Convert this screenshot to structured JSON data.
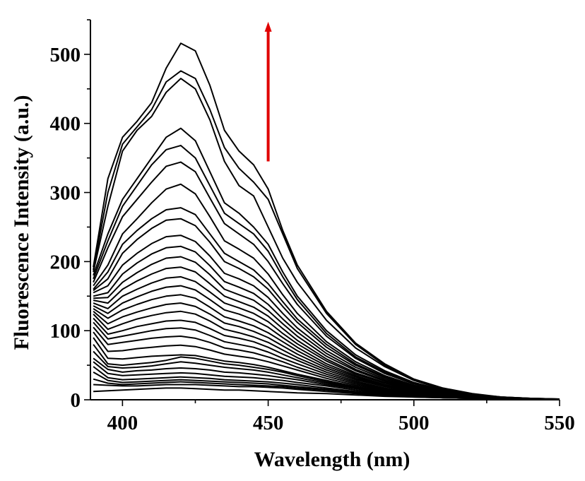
{
  "chart_data": {
    "type": "line",
    "xlabel": "Wavelength (nm)",
    "ylabel": "Fluorescence Intensity (a.u.)",
    "xlim": [
      389,
      550
    ],
    "ylim": [
      0,
      550
    ],
    "xticks": [
      400,
      450,
      500,
      550
    ],
    "yticks": [
      0,
      100,
      200,
      300,
      400,
      500
    ],
    "grid": false,
    "legend": "none",
    "annotation": {
      "type": "arrow",
      "color": "#e00000",
      "x": 450,
      "y_from": 345,
      "y_to": 545,
      "meaning": "increasing intensity"
    },
    "x": [
      390,
      395,
      400,
      405,
      410,
      415,
      420,
      425,
      430,
      435,
      440,
      445,
      450,
      455,
      460,
      470,
      480,
      490,
      500,
      510,
      520,
      530,
      540,
      550
    ],
    "series": [
      {
        "values": [
          192,
          320,
          380,
          403,
          430,
          480,
          516,
          505,
          455,
          390,
          360,
          340,
          305,
          245,
          195,
          128,
          82,
          52,
          30,
          17,
          9,
          4,
          2,
          1
        ]
      },
      {
        "values": [
          188,
          300,
          370,
          395,
          420,
          460,
          476,
          465,
          420,
          365,
          335,
          315,
          290,
          240,
          190,
          125,
          80,
          50,
          29,
          16,
          8,
          4,
          2,
          1
        ]
      },
      {
        "values": [
          185,
          280,
          360,
          390,
          410,
          445,
          465,
          450,
          405,
          345,
          310,
          295,
          250,
          205,
          170,
          115,
          75,
          48,
          28,
          15,
          8,
          4,
          2,
          1
        ]
      },
      {
        "values": [
          180,
          240,
          290,
          320,
          350,
          380,
          393,
          375,
          330,
          285,
          270,
          250,
          225,
          185,
          150,
          100,
          65,
          42,
          25,
          14,
          7,
          3,
          1,
          1
        ]
      },
      {
        "values": [
          175,
          230,
          280,
          310,
          340,
          362,
          368,
          350,
          310,
          270,
          255,
          240,
          215,
          178,
          145,
          96,
          62,
          40,
          24,
          13,
          7,
          3,
          1,
          1
        ]
      },
      {
        "values": [
          170,
          220,
          265,
          290,
          315,
          338,
          344,
          330,
          292,
          255,
          240,
          225,
          200,
          168,
          138,
          92,
          60,
          38,
          23,
          13,
          6,
          3,
          1,
          1
        ]
      },
      {
        "values": [
          165,
          195,
          240,
          262,
          285,
          305,
          312,
          298,
          265,
          230,
          218,
          205,
          182,
          152,
          125,
          84,
          55,
          35,
          21,
          12,
          6,
          3,
          1,
          1
        ]
      },
      {
        "values": [
          160,
          185,
          225,
          245,
          262,
          275,
          278,
          268,
          240,
          212,
          200,
          188,
          168,
          142,
          117,
          80,
          52,
          33,
          20,
          11,
          6,
          3,
          1,
          1
        ]
      },
      {
        "values": [
          158,
          175,
          212,
          232,
          248,
          260,
          262,
          252,
          228,
          200,
          190,
          178,
          160,
          135,
          112,
          76,
          50,
          32,
          19,
          11,
          5,
          2,
          1,
          1
        ]
      },
      {
        "values": [
          155,
          165,
          195,
          212,
          226,
          236,
          238,
          229,
          208,
          183,
          175,
          165,
          148,
          125,
          104,
          71,
          47,
          30,
          18,
          10,
          5,
          2,
          1,
          0
        ]
      },
      {
        "values": [
          150,
          155,
          182,
          198,
          211,
          220,
          222,
          214,
          194,
          171,
          163,
          154,
          138,
          117,
          98,
          67,
          44,
          28,
          17,
          10,
          5,
          2,
          1,
          0
        ]
      },
      {
        "values": [
          147,
          148,
          170,
          184,
          196,
          205,
          207,
          199,
          181,
          160,
          152,
          144,
          129,
          110,
          92,
          63,
          42,
          27,
          16,
          9,
          5,
          2,
          1,
          0
        ]
      },
      {
        "values": [
          144,
          140,
          160,
          172,
          182,
          190,
          192,
          185,
          168,
          150,
          142,
          134,
          121,
          103,
          86,
          59,
          39,
          25,
          15,
          9,
          4,
          2,
          1,
          0
        ]
      },
      {
        "values": [
          140,
          132,
          150,
          160,
          169,
          176,
          178,
          171,
          156,
          140,
          133,
          125,
          113,
          96,
          81,
          56,
          37,
          24,
          14,
          8,
          4,
          2,
          1,
          0
        ]
      },
      {
        "values": [
          136,
          125,
          140,
          149,
          157,
          163,
          165,
          159,
          145,
          130,
          124,
          116,
          105,
          90,
          76,
          52,
          35,
          22,
          13,
          8,
          4,
          2,
          1,
          0
        ]
      },
      {
        "values": [
          132,
          118,
          130,
          138,
          145,
          150,
          152,
          147,
          134,
          120,
          114,
          107,
          97,
          84,
          71,
          49,
          33,
          21,
          12,
          7,
          4,
          2,
          1,
          0
        ]
      },
      {
        "values": [
          128,
          110,
          120,
          127,
          133,
          138,
          140,
          135,
          124,
          111,
          106,
          99,
          90,
          78,
          66,
          46,
          31,
          20,
          12,
          7,
          3,
          2,
          1,
          0
        ]
      },
      {
        "values": [
          124,
          102,
          110,
          117,
          122,
          126,
          128,
          124,
          114,
          102,
          97,
          91,
          83,
          72,
          61,
          43,
          29,
          19,
          11,
          6,
          3,
          1,
          1,
          0
        ]
      },
      {
        "values": [
          118,
          95,
          100,
          106,
          110,
          114,
          115,
          112,
          103,
          93,
          89,
          84,
          76,
          66,
          57,
          40,
          27,
          17,
          10,
          6,
          3,
          1,
          1,
          0
        ]
      },
      {
        "values": [
          112,
          88,
          92,
          96,
          100,
          103,
          104,
          101,
          93,
          84,
          80,
          76,
          69,
          60,
          52,
          37,
          25,
          16,
          10,
          5,
          3,
          1,
          1,
          0
        ]
      },
      {
        "values": [
          105,
          80,
          83,
          86,
          89,
          91,
          92,
          89,
          83,
          75,
          72,
          68,
          62,
          55,
          47,
          34,
          23,
          15,
          9,
          5,
          2,
          1,
          0,
          0
        ]
      },
      {
        "values": [
          98,
          70,
          71,
          74,
          76,
          78,
          79,
          77,
          72,
          66,
          63,
          60,
          55,
          49,
          43,
          31,
          21,
          14,
          8,
          5,
          2,
          1,
          0,
          0
        ]
      },
      {
        "values": [
          90,
          60,
          59,
          61,
          63,
          64,
          65,
          64,
          60,
          56,
          54,
          51,
          47,
          42,
          37,
          28,
          19,
          13,
          8,
          4,
          2,
          1,
          0,
          0
        ]
      },
      {
        "values": [
          80,
          52,
          50,
          52,
          54,
          57,
          62,
          60,
          56,
          52,
          50,
          47,
          44,
          40,
          35,
          26,
          18,
          12,
          7,
          4,
          2,
          1,
          0,
          0
        ]
      },
      {
        "values": [
          70,
          48,
          46,
          47,
          49,
          52,
          55,
          53,
          50,
          47,
          45,
          43,
          40,
          36,
          32,
          24,
          17,
          11,
          7,
          4,
          2,
          1,
          0,
          0
        ]
      },
      {
        "values": [
          60,
          44,
          40,
          42,
          43,
          45,
          46,
          45,
          43,
          40,
          39,
          37,
          35,
          32,
          29,
          22,
          16,
          10,
          6,
          4,
          2,
          1,
          0,
          0
        ]
      },
      {
        "values": [
          55,
          38,
          35,
          36,
          37,
          38,
          39,
          38,
          36,
          34,
          33,
          32,
          30,
          28,
          25,
          20,
          14,
          9,
          6,
          3,
          2,
          1,
          0,
          0
        ]
      },
      {
        "values": [
          48,
          32,
          29,
          30,
          31,
          32,
          33,
          32,
          31,
          29,
          28,
          27,
          26,
          24,
          22,
          17,
          12,
          8,
          5,
          3,
          2,
          1,
          0,
          0
        ]
      },
      {
        "values": [
          40,
          28,
          25,
          26,
          27,
          28,
          29,
          28,
          27,
          26,
          25,
          24,
          23,
          21,
          19,
          15,
          11,
          8,
          5,
          3,
          2,
          1,
          0,
          0
        ]
      },
      {
        "values": [
          30,
          24,
          22,
          23,
          24,
          25,
          26,
          25,
          24,
          23,
          22,
          21,
          20,
          19,
          17,
          14,
          10,
          7,
          5,
          3,
          2,
          1,
          0,
          0
        ]
      },
      {
        "values": [
          22,
          21,
          20,
          20,
          21,
          22,
          22,
          22,
          21,
          20,
          19,
          19,
          18,
          17,
          15,
          12,
          9,
          6,
          4,
          3,
          2,
          1,
          0,
          0
        ]
      },
      {
        "values": [
          12,
          13,
          14,
          15,
          16,
          17,
          17,
          16,
          15,
          14,
          14,
          13,
          12,
          11,
          10,
          9,
          7,
          5,
          4,
          3,
          2,
          1,
          1,
          0
        ]
      }
    ]
  }
}
